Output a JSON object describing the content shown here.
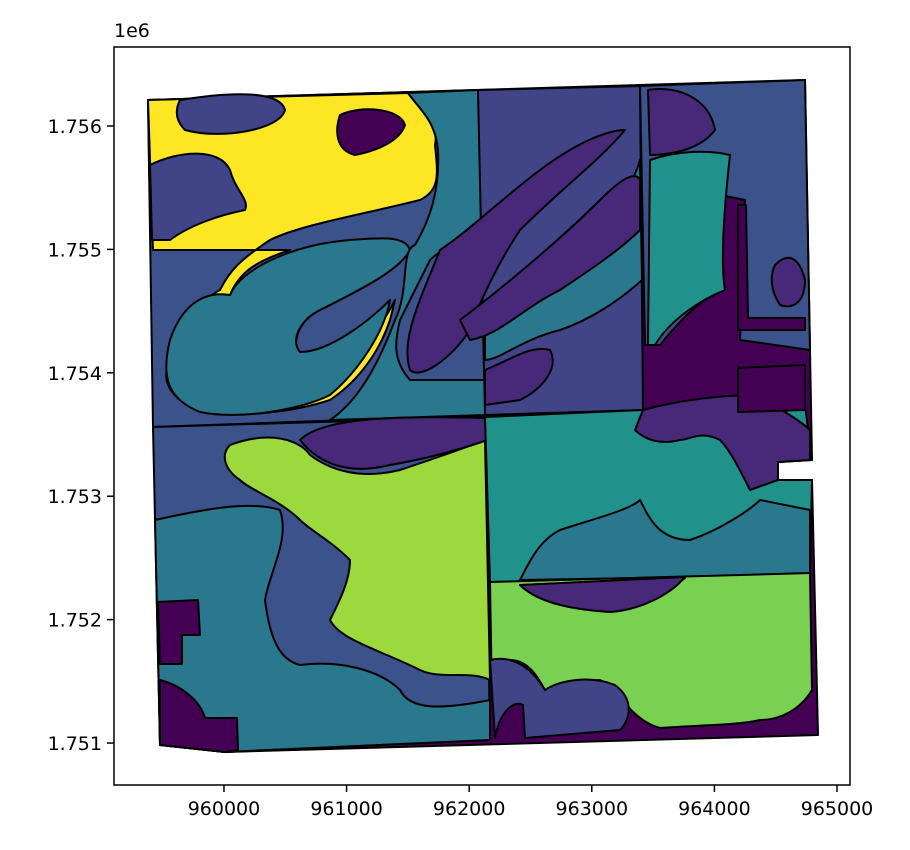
{
  "chart_data": {
    "type": "map",
    "y_offset_label": "1e6",
    "xlim": [
      959103,
      965106
    ],
    "ylim": [
      1750660,
      1756640
    ],
    "xticks": [
      960000,
      961000,
      962000,
      963000,
      964000,
      965000
    ],
    "yticks": [
      {
        "value": 1751000,
        "label": "1.751"
      },
      {
        "value": 1752000,
        "label": "1.752"
      },
      {
        "value": 1753000,
        "label": "1.753"
      },
      {
        "value": 1754000,
        "label": "1.754"
      },
      {
        "value": 1755000,
        "label": "1.755"
      },
      {
        "value": 1756000,
        "label": "1.756"
      }
    ]
  }
}
